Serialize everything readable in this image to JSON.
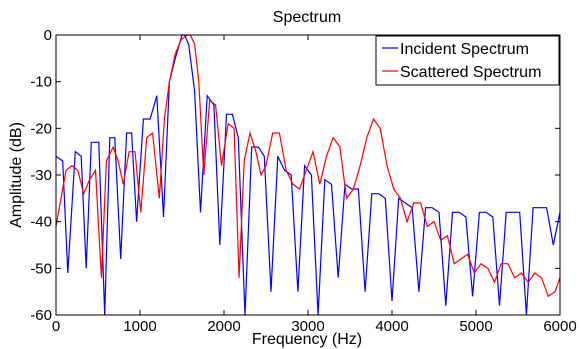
{
  "chart_data": {
    "type": "line",
    "title": "Spectrum",
    "xlabel": "Frequency (Hz)",
    "ylabel": "Amplitude (dB)",
    "xlim": [
      0,
      6000
    ],
    "ylim": [
      -60,
      0
    ],
    "xticks": [
      0,
      1000,
      2000,
      3000,
      4000,
      5000,
      6000
    ],
    "yticks": [
      0,
      -10,
      -20,
      -30,
      -40,
      -50,
      -60
    ],
    "grid": false,
    "legend_position": "top-right",
    "series": [
      {
        "name": "Incident Spectrum",
        "color": "#0000ff",
        "x": [
          0,
          80,
          140,
          230,
          300,
          360,
          420,
          510,
          580,
          640,
          700,
          770,
          840,
          900,
          960,
          1040,
          1120,
          1200,
          1280,
          1350,
          1420,
          1500,
          1530,
          1580,
          1650,
          1720,
          1800,
          1880,
          1950,
          2030,
          2100,
          2170,
          2250,
          2330,
          2410,
          2480,
          2560,
          2640,
          2720,
          2800,
          2880,
          2960,
          3040,
          3120,
          3200,
          3280,
          3360,
          3440,
          3520,
          3600,
          3680,
          3760,
          3840,
          3920,
          4000,
          4080,
          4160,
          4240,
          4320,
          4400,
          4480,
          4560,
          4640,
          4720,
          4800,
          4880,
          4960,
          5040,
          5120,
          5200,
          5280,
          5360,
          5440,
          5520,
          5600,
          5680,
          5760,
          5840,
          5920,
          6000
        ],
        "y": [
          -26,
          -27,
          -51,
          -25,
          -26,
          -50,
          -23,
          -23,
          -60,
          -22,
          -22,
          -48,
          -21,
          -21,
          -40,
          -18,
          -18,
          -13,
          -39,
          -10,
          -5,
          0,
          0,
          -2,
          -12,
          -38,
          -13,
          -15,
          -45,
          -17,
          -17,
          -22,
          -60,
          -24,
          -24,
          -26,
          -55,
          -26,
          -29,
          -30,
          -55,
          -28,
          -30,
          -60,
          -31,
          -32,
          -52,
          -32,
          -33,
          -33,
          -55,
          -34,
          -34,
          -35,
          -57,
          -35,
          -36,
          -37,
          -55,
          -37,
          -37,
          -38,
          -58,
          -38,
          -38,
          -39,
          -56,
          -38,
          -38,
          -39,
          -58,
          -38,
          -38,
          -38,
          -60,
          -37,
          -37,
          -37,
          -45,
          -38
        ]
      },
      {
        "name": "Scattered Spectrum",
        "color": "#ff0000",
        "x": [
          0,
          60,
          120,
          190,
          260,
          330,
          400,
          470,
          540,
          600,
          680,
          740,
          800,
          870,
          940,
          1010,
          1080,
          1150,
          1230,
          1290,
          1350,
          1420,
          1490,
          1560,
          1600,
          1650,
          1700,
          1760,
          1830,
          1900,
          1970,
          2050,
          2120,
          2180,
          2240,
          2310,
          2380,
          2440,
          2500,
          2580,
          2660,
          2740,
          2820,
          2900,
          2980,
          3060,
          3140,
          3220,
          3300,
          3380,
          3460,
          3540,
          3620,
          3700,
          3780,
          3860,
          3940,
          4020,
          4100,
          4180,
          4260,
          4340,
          4420,
          4500,
          4580,
          4660,
          4740,
          4820,
          4900,
          4980,
          5060,
          5140,
          5220,
          5300,
          5380,
          5460,
          5540,
          5620,
          5700,
          5780,
          5860,
          5940,
          6000
        ],
        "y": [
          -41,
          -35,
          -29,
          -28,
          -29,
          -34,
          -31,
          -29,
          -52,
          -27,
          -24,
          -27,
          -32,
          -25,
          -25,
          -38,
          -22,
          -21,
          -35,
          -18,
          -10,
          -4,
          -1,
          0,
          0,
          -2,
          -10,
          -30,
          -14,
          -15,
          -28,
          -19,
          -20,
          -52,
          -27,
          -21,
          -25,
          -30,
          -28,
          -21,
          -21,
          -29,
          -32,
          -33,
          -29,
          -25,
          -32,
          -26,
          -22,
          -24,
          -35,
          -33,
          -28,
          -22,
          -18,
          -20,
          -28,
          -33,
          -35,
          -40,
          -36,
          -36,
          -41,
          -40,
          -44,
          -43,
          -49,
          -48,
          -47,
          -51,
          -49,
          -50,
          -53,
          -49,
          -49,
          -52,
          -51,
          -53,
          -51,
          -52,
          -56,
          -55,
          -52
        ]
      }
    ]
  }
}
